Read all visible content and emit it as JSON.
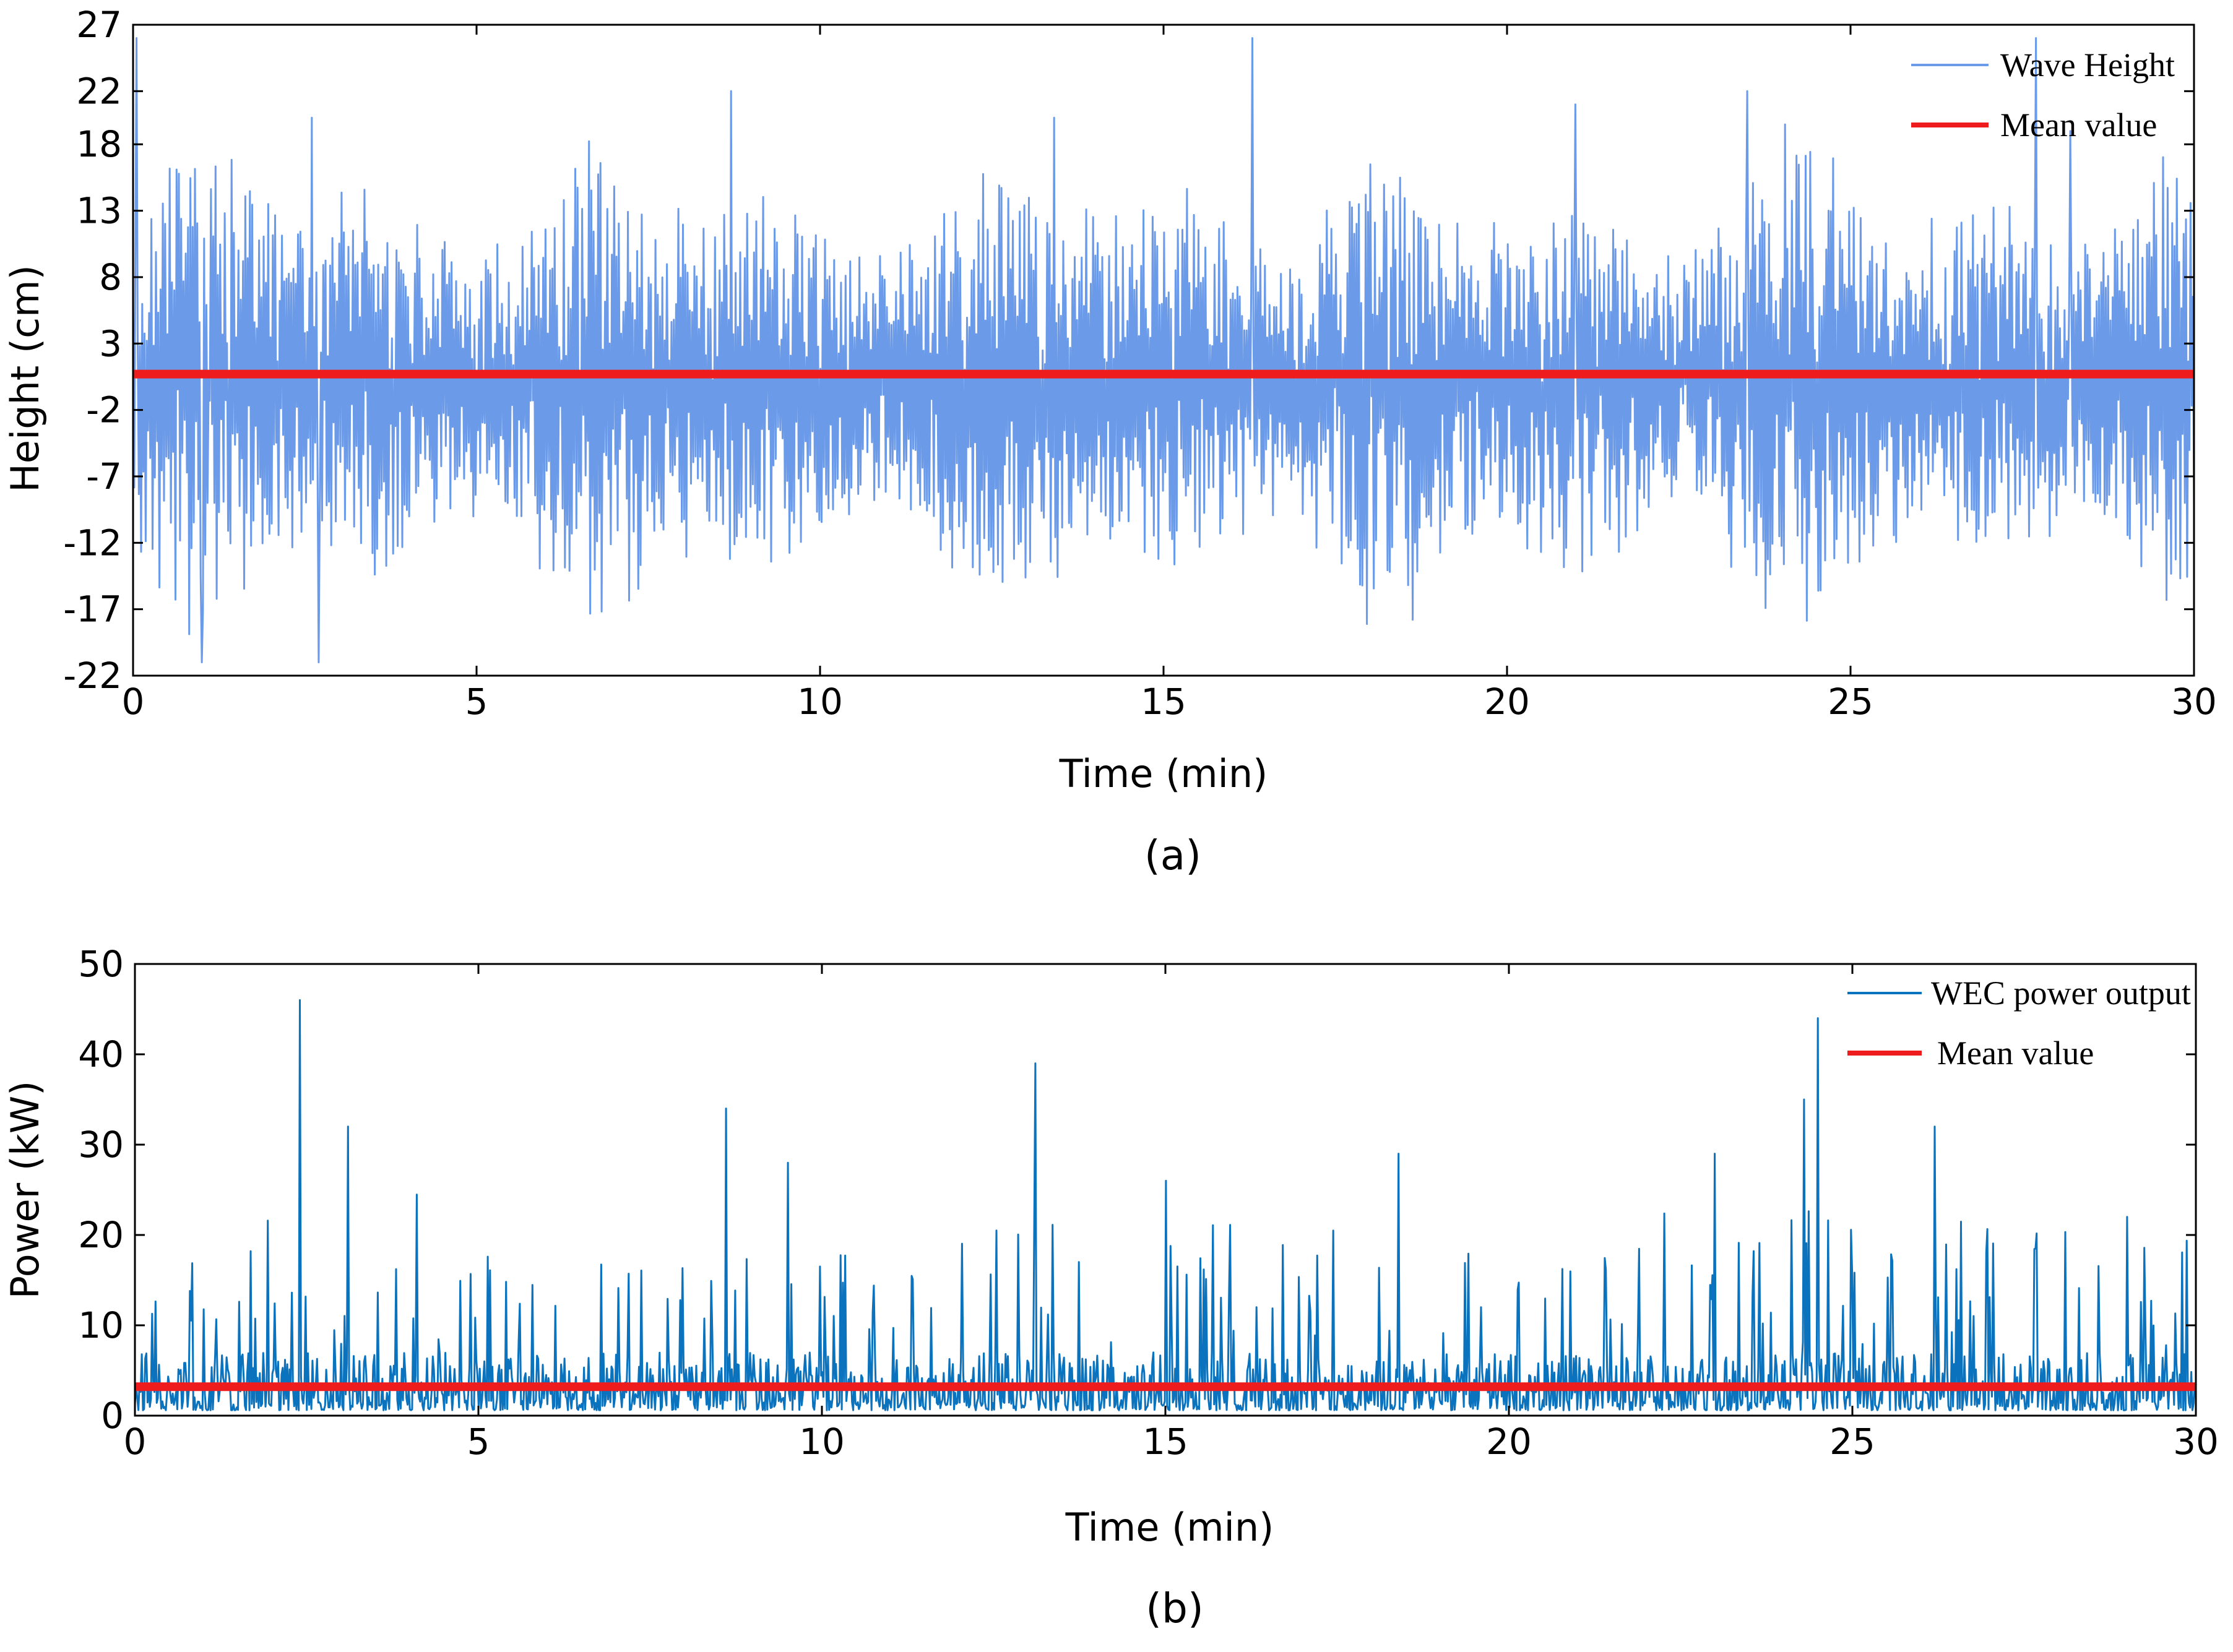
{
  "chart_data": [
    {
      "type": "line",
      "panel_caption": "(a)",
      "xlabel": "Time (min)",
      "ylabel": "Height (cm)",
      "xlim": [
        0,
        30
      ],
      "ylim": [
        -22,
        27
      ],
      "x_ticks": [
        0,
        5,
        10,
        15,
        20,
        25,
        30
      ],
      "y_ticks": [
        -22,
        -17,
        -12,
        -7,
        -2,
        3,
        8,
        13,
        18,
        22,
        27
      ],
      "grid": false,
      "legend_position": "top-right",
      "series": [
        {
          "name": "Wave Height",
          "color": "#6a9ae8",
          "kind": "random-wave",
          "n_points": 1800,
          "typical_amplitude": 8,
          "peak_times": [
            0.05,
            1.0,
            2.6,
            2.7,
            8.7,
            13.4,
            16.3,
            21.0,
            23.5,
            27.7,
            28.2
          ],
          "peak_values": [
            26,
            -21,
            20,
            -21,
            22,
            20,
            26,
            21,
            22,
            26,
            19
          ]
        },
        {
          "name": "Mean value",
          "color": "#ee1c1c",
          "kind": "constant",
          "value": 0.7
        }
      ]
    },
    {
      "type": "line",
      "panel_caption": "(b)",
      "xlabel": "Time (min)",
      "ylabel": "Power (kW)",
      "xlim": [
        0,
        30
      ],
      "ylim": [
        0,
        50
      ],
      "x_ticks": [
        0,
        5,
        10,
        15,
        20,
        25,
        30
      ],
      "y_ticks": [
        0,
        10,
        20,
        30,
        40,
        50
      ],
      "grid": false,
      "legend_position": "top-right",
      "series": [
        {
          "name": "WEC power output",
          "color": "#0b72bd",
          "kind": "random-power",
          "n_points": 1800,
          "typical_level": 4,
          "peak_times": [
            2.4,
            3.1,
            8.6,
            9.5,
            13.1,
            15.0,
            18.4,
            23.0,
            24.3,
            24.5,
            26.2,
            29.0
          ],
          "peak_values": [
            46,
            32,
            34,
            28,
            39,
            26,
            29,
            29,
            35,
            44,
            32,
            22
          ]
        },
        {
          "name": "Mean value",
          "color": "#ee1c1c",
          "kind": "constant",
          "value": 3.2
        }
      ]
    }
  ]
}
